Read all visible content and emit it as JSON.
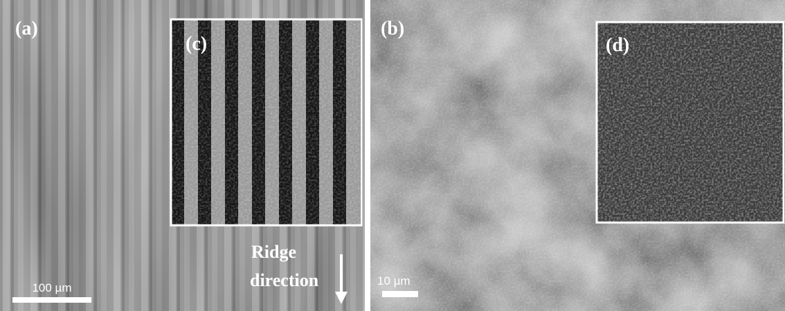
{
  "panels": [
    {
      "label": "(a)",
      "scale_bar": "100 µm",
      "annotation": [
        "Ridge",
        "direction"
      ]
    },
    {
      "label": "(b)",
      "scale_bar": "10 µm"
    }
  ],
  "insets": [
    {
      "label": "(c)"
    },
    {
      "label": "(d)"
    }
  ]
}
